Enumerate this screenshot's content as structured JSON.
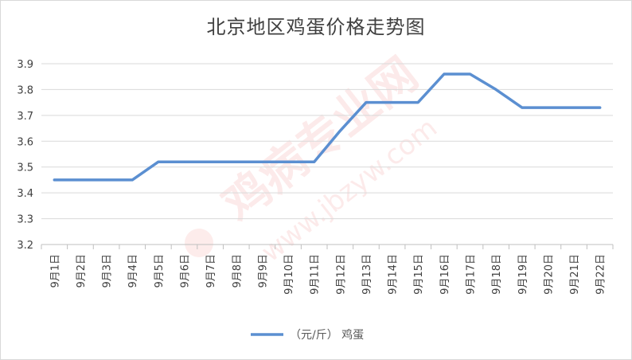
{
  "chart_data": {
    "type": "line",
    "title": "北京地区鸡蛋价格走势图",
    "xlabel": "",
    "ylabel": "",
    "ylim": [
      3.2,
      3.9
    ],
    "yticks": [
      "3.2",
      "3.3",
      "3.4",
      "3.5",
      "3.6",
      "3.7",
      "3.8",
      "3.9"
    ],
    "grid": true,
    "legend_position": "bottom",
    "categories": [
      "9月1日",
      "9月2日",
      "9月3日",
      "9月4日",
      "9月5日",
      "9月6日",
      "9月7日",
      "9月8日",
      "9月9日",
      "9月10日",
      "9月11日",
      "9月12日",
      "9月13日",
      "9月14日",
      "9月15日",
      "9月16日",
      "9月17日",
      "9月18日",
      "9月19日",
      "9月20日",
      "9月21日",
      "9月22日"
    ],
    "series": [
      {
        "name": "（元/斤） 鸡蛋",
        "color": "#5b8fd1",
        "values": [
          3.45,
          3.45,
          3.45,
          3.45,
          3.52,
          3.52,
          3.52,
          3.52,
          3.52,
          3.52,
          3.52,
          3.64,
          3.75,
          3.75,
          3.75,
          3.86,
          3.86,
          3.8,
          3.73,
          3.73,
          3.73,
          3.73
        ]
      }
    ]
  },
  "watermark": {
    "text": "鸡病专业网",
    "url": "www.jbzyw.com"
  }
}
